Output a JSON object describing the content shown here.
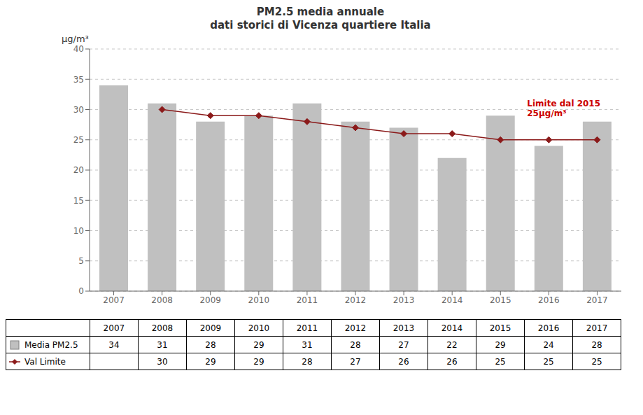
{
  "chart_data": {
    "type": "bar",
    "title": "PM2.5 media annuale",
    "subtitle": "dati storici di Vicenza quartiere Italia",
    "y_label": "μg/m³",
    "categories": [
      2007,
      2008,
      2009,
      2010,
      2011,
      2012,
      2013,
      2014,
      2015,
      2016,
      2017
    ],
    "series": [
      {
        "name": "Media PM2.5",
        "type": "bar",
        "color": "#C0C0C0",
        "values": [
          34,
          31,
          28,
          29,
          31,
          28,
          27,
          22,
          29,
          24,
          28
        ]
      },
      {
        "name": "Val Limite",
        "type": "line",
        "color": "#8B1A1A",
        "marker": "diamond",
        "values": [
          null,
          30,
          29,
          29,
          28,
          27,
          26,
          26,
          25,
          25,
          25
        ]
      }
    ],
    "ylim": [
      0,
      40
    ],
    "yticks": [
      0,
      5,
      10,
      15,
      20,
      25,
      30,
      35,
      40
    ],
    "grid": true,
    "annotations": [
      {
        "text": "Limite dal 2015\n25μg/m³",
        "color": "#CC0000"
      }
    ]
  }
}
